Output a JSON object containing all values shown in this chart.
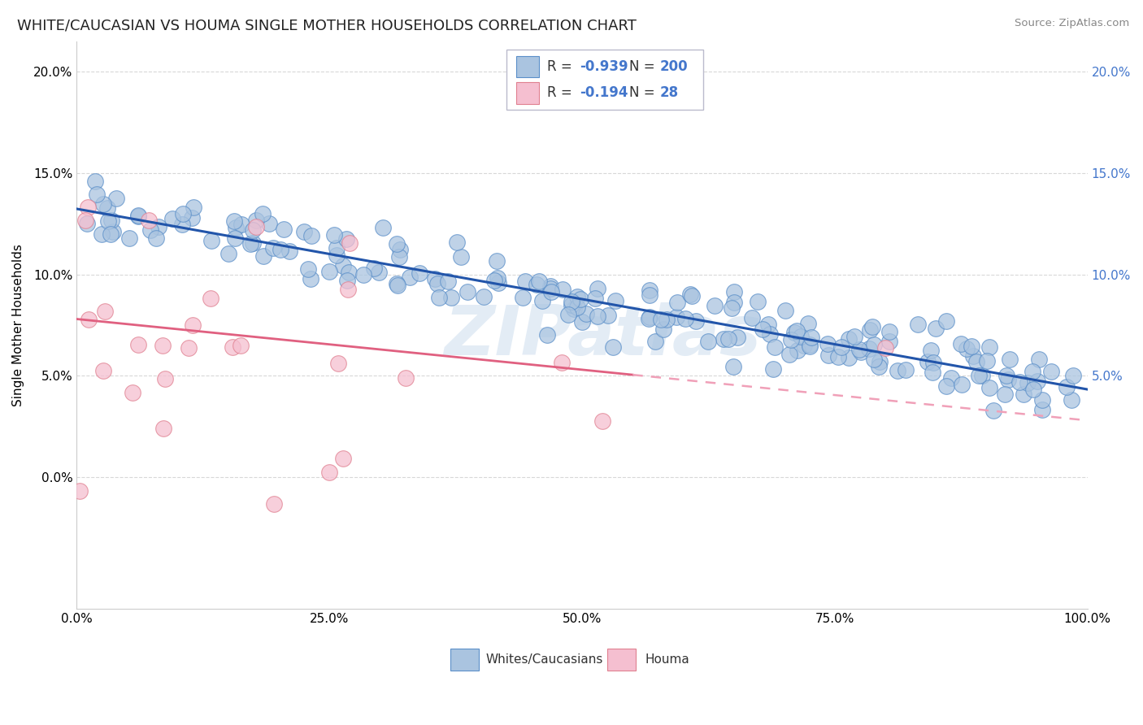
{
  "title": "WHITE/CAUCASIAN VS HOUMA SINGLE MOTHER HOUSEHOLDS CORRELATION CHART",
  "source": "Source: ZipAtlas.com",
  "ylabel": "Single Mother Households",
  "watermark": "ZIPatlas",
  "blue_R": -0.939,
  "blue_N": 200,
  "pink_R": -0.194,
  "pink_N": 28,
  "blue_color": "#aac4e0",
  "blue_edge_color": "#5b8fc9",
  "blue_line_color": "#2255aa",
  "pink_color": "#f5bfd0",
  "pink_edge_color": "#e08090",
  "pink_line_color": "#e06080",
  "pink_dash_color": "#f0a0b8",
  "background_color": "#ffffff",
  "grid_color": "#d8d8d8",
  "xlim": [
    0.0,
    1.0
  ],
  "ylim": [
    -0.065,
    0.215
  ],
  "xticks": [
    0.0,
    0.25,
    0.5,
    0.75,
    1.0
  ],
  "xtick_labels": [
    "0.0%",
    "25.0%",
    "50.0%",
    "75.0%",
    "100.0%"
  ],
  "ytick_vals": [
    0.0,
    0.05,
    0.1,
    0.15,
    0.2
  ],
  "ytick_labels": [
    "0.0%",
    "5.0%",
    "10.0%",
    "15.0%",
    "20.0%"
  ],
  "right_ytick_vals": [
    0.05,
    0.1,
    0.15,
    0.2
  ],
  "right_ytick_labels": [
    "5.0%",
    "10.0%",
    "15.0%",
    "20.0%"
  ],
  "legend_labels": [
    "Whites/Caucasians",
    "Houma"
  ],
  "title_fontsize": 13,
  "label_fontsize": 11,
  "tick_fontsize": 11,
  "legend_fontsize": 11,
  "r_color": "#4477cc",
  "n_color": "#4477cc"
}
